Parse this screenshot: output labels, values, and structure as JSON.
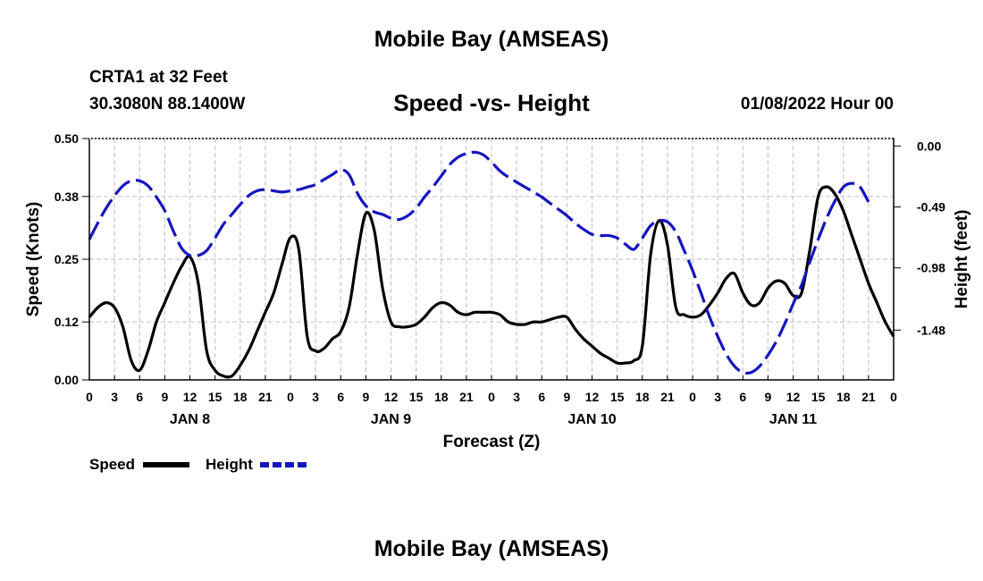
{
  "header": {
    "title_top": "Mobile Bay (AMSEAS)",
    "station": "CRTA1 at 32 Feet",
    "coords": "30.3080N  88.1400W",
    "subtitle": "Speed -vs- Height",
    "datetime": "01/08/2022 Hour 00"
  },
  "footer": {
    "title_bottom": "Mobile Bay (AMSEAS)"
  },
  "colors": {
    "speed": "#000000",
    "height": "#1515c0",
    "grid": "#c8c8c8"
  },
  "chart_data": {
    "type": "line",
    "title": "Speed -vs- Height",
    "xlabel": "Forecast (Z)",
    "ylabel_left": "Speed (Knots)",
    "ylabel_right": "Height (feet)",
    "x_range_hours": [
      0,
      96
    ],
    "x_tick_labels": [
      "0",
      "3",
      "6",
      "9",
      "12",
      "15",
      "18",
      "21",
      "0",
      "3",
      "6",
      "9",
      "12",
      "15",
      "18",
      "21",
      "0",
      "3",
      "6",
      "9",
      "12",
      "15",
      "18",
      "21",
      "0",
      "3",
      "6",
      "9",
      "12",
      "15",
      "18",
      "21",
      "0"
    ],
    "day_labels": [
      {
        "text": "JAN 8",
        "hour": 12
      },
      {
        "text": "JAN 9",
        "hour": 36
      },
      {
        "text": "JAN 10",
        "hour": 60
      },
      {
        "text": "JAN 11",
        "hour": 84
      }
    ],
    "y_left": {
      "range": [
        0,
        0.5
      ],
      "ticks": [
        0.0,
        0.12,
        0.25,
        0.38,
        0.5
      ],
      "tick_labels": [
        "0.00",
        "0.12",
        "0.25",
        "0.38",
        "0.50"
      ]
    },
    "y_right": {
      "range": [
        -1.88,
        0.06
      ],
      "ticks": [
        0.0,
        -0.49,
        -0.98,
        -1.48
      ],
      "tick_labels": [
        "0.00",
        "-0.49",
        "-0.98",
        "-1.48"
      ]
    },
    "grid": true,
    "legend": [
      {
        "label": "Speed",
        "series": "Speed"
      },
      {
        "label": "Height",
        "series": "Height"
      }
    ],
    "series": [
      {
        "name": "Speed",
        "axis": "left",
        "style": "solid",
        "points": [
          [
            0,
            0.13
          ],
          [
            1,
            0.15
          ],
          [
            2,
            0.16
          ],
          [
            3,
            0.15
          ],
          [
            4,
            0.11
          ],
          [
            5,
            0.04
          ],
          [
            6,
            0.02
          ],
          [
            7,
            0.06
          ],
          [
            8,
            0.12
          ],
          [
            9,
            0.16
          ],
          [
            10,
            0.2
          ],
          [
            11,
            0.235
          ],
          [
            12,
            0.255
          ],
          [
            13,
            0.2
          ],
          [
            14,
            0.06
          ],
          [
            15,
            0.02
          ],
          [
            16,
            0.008
          ],
          [
            17,
            0.008
          ],
          [
            18,
            0.03
          ],
          [
            19,
            0.06
          ],
          [
            20,
            0.1
          ],
          [
            21,
            0.14
          ],
          [
            22,
            0.18
          ],
          [
            23,
            0.24
          ],
          [
            24,
            0.295
          ],
          [
            25,
            0.27
          ],
          [
            26,
            0.09
          ],
          [
            27,
            0.06
          ],
          [
            28,
            0.065
          ],
          [
            29,
            0.085
          ],
          [
            30,
            0.1
          ],
          [
            31,
            0.15
          ],
          [
            32,
            0.26
          ],
          [
            33,
            0.345
          ],
          [
            34,
            0.31
          ],
          [
            35,
            0.19
          ],
          [
            36,
            0.12
          ],
          [
            37,
            0.11
          ],
          [
            38,
            0.11
          ],
          [
            39,
            0.115
          ],
          [
            40,
            0.13
          ],
          [
            41,
            0.15
          ],
          [
            42,
            0.16
          ],
          [
            43,
            0.155
          ],
          [
            44,
            0.14
          ],
          [
            45,
            0.135
          ],
          [
            46,
            0.14
          ],
          [
            47,
            0.14
          ],
          [
            48,
            0.14
          ],
          [
            49,
            0.135
          ],
          [
            50,
            0.12
          ],
          [
            51,
            0.115
          ],
          [
            52,
            0.115
          ],
          [
            53,
            0.12
          ],
          [
            54,
            0.12
          ],
          [
            55,
            0.125
          ],
          [
            56,
            0.13
          ],
          [
            57,
            0.13
          ],
          [
            58,
            0.105
          ],
          [
            59,
            0.085
          ],
          [
            60,
            0.07
          ],
          [
            61,
            0.055
          ],
          [
            62,
            0.045
          ],
          [
            63,
            0.035
          ],
          [
            64,
            0.035
          ],
          [
            65,
            0.04
          ],
          [
            66,
            0.07
          ],
          [
            67,
            0.26
          ],
          [
            68,
            0.33
          ],
          [
            69,
            0.28
          ],
          [
            70,
            0.15
          ],
          [
            71,
            0.135
          ],
          [
            72,
            0.13
          ],
          [
            73,
            0.135
          ],
          [
            74,
            0.155
          ],
          [
            75,
            0.18
          ],
          [
            76,
            0.21
          ],
          [
            77,
            0.22
          ],
          [
            78,
            0.18
          ],
          [
            79,
            0.155
          ],
          [
            80,
            0.16
          ],
          [
            81,
            0.19
          ],
          [
            82,
            0.205
          ],
          [
            83,
            0.2
          ],
          [
            84,
            0.175
          ],
          [
            85,
            0.18
          ],
          [
            86,
            0.27
          ],
          [
            87,
            0.38
          ],
          [
            88,
            0.4
          ],
          [
            89,
            0.385
          ],
          [
            90,
            0.35
          ],
          [
            91,
            0.3
          ],
          [
            92,
            0.25
          ],
          [
            93,
            0.2
          ],
          [
            94,
            0.16
          ],
          [
            95,
            0.12
          ],
          [
            96,
            0.09
          ]
        ]
      },
      {
        "name": "Height",
        "axis": "right",
        "style": "dashed",
        "points": [
          [
            0,
            -0.75
          ],
          [
            1,
            -0.62
          ],
          [
            2,
            -0.5
          ],
          [
            3,
            -0.4
          ],
          [
            4,
            -0.32
          ],
          [
            5,
            -0.28
          ],
          [
            6,
            -0.28
          ],
          [
            7,
            -0.32
          ],
          [
            8,
            -0.41
          ],
          [
            9,
            -0.52
          ],
          [
            10,
            -0.68
          ],
          [
            11,
            -0.82
          ],
          [
            12,
            -0.88
          ],
          [
            13,
            -0.88
          ],
          [
            14,
            -0.84
          ],
          [
            15,
            -0.74
          ],
          [
            16,
            -0.63
          ],
          [
            17,
            -0.55
          ],
          [
            18,
            -0.47
          ],
          [
            19,
            -0.4
          ],
          [
            20,
            -0.36
          ],
          [
            21,
            -0.35
          ],
          [
            22,
            -0.36
          ],
          [
            23,
            -0.37
          ],
          [
            24,
            -0.36
          ],
          [
            25,
            -0.35
          ],
          [
            26,
            -0.33
          ],
          [
            27,
            -0.31
          ],
          [
            28,
            -0.27
          ],
          [
            29,
            -0.23
          ],
          [
            30,
            -0.19
          ],
          [
            31,
            -0.23
          ],
          [
            32,
            -0.38
          ],
          [
            33,
            -0.48
          ],
          [
            34,
            -0.53
          ],
          [
            35,
            -0.55
          ],
          [
            36,
            -0.58
          ],
          [
            37,
            -0.59
          ],
          [
            38,
            -0.56
          ],
          [
            39,
            -0.5
          ],
          [
            40,
            -0.41
          ],
          [
            41,
            -0.33
          ],
          [
            42,
            -0.24
          ],
          [
            43,
            -0.15
          ],
          [
            44,
            -0.09
          ],
          [
            45,
            -0.06
          ],
          [
            46,
            -0.05
          ],
          [
            47,
            -0.07
          ],
          [
            48,
            -0.13
          ],
          [
            49,
            -0.2
          ],
          [
            50,
            -0.25
          ],
          [
            51,
            -0.29
          ],
          [
            52,
            -0.33
          ],
          [
            53,
            -0.37
          ],
          [
            54,
            -0.41
          ],
          [
            55,
            -0.46
          ],
          [
            56,
            -0.51
          ],
          [
            57,
            -0.56
          ],
          [
            58,
            -0.62
          ],
          [
            59,
            -0.67
          ],
          [
            60,
            -0.71
          ],
          [
            61,
            -0.72
          ],
          [
            62,
            -0.72
          ],
          [
            63,
            -0.74
          ],
          [
            64,
            -0.79
          ],
          [
            65,
            -0.83
          ],
          [
            66,
            -0.74
          ],
          [
            67,
            -0.64
          ],
          [
            68,
            -0.6
          ],
          [
            69,
            -0.61
          ],
          [
            70,
            -0.69
          ],
          [
            71,
            -0.84
          ],
          [
            72,
            -1.0
          ],
          [
            73,
            -1.18
          ],
          [
            74,
            -1.37
          ],
          [
            75,
            -1.53
          ],
          [
            76,
            -1.67
          ],
          [
            77,
            -1.77
          ],
          [
            78,
            -1.82
          ],
          [
            79,
            -1.82
          ],
          [
            80,
            -1.77
          ],
          [
            81,
            -1.68
          ],
          [
            82,
            -1.57
          ],
          [
            83,
            -1.43
          ],
          [
            84,
            -1.27
          ],
          [
            85,
            -1.12
          ],
          [
            86,
            -0.93
          ],
          [
            87,
            -0.75
          ],
          [
            88,
            -0.58
          ],
          [
            89,
            -0.44
          ],
          [
            90,
            -0.33
          ],
          [
            91,
            -0.3
          ],
          [
            92,
            -0.33
          ],
          [
            93,
            -0.45
          ]
        ]
      }
    ]
  }
}
